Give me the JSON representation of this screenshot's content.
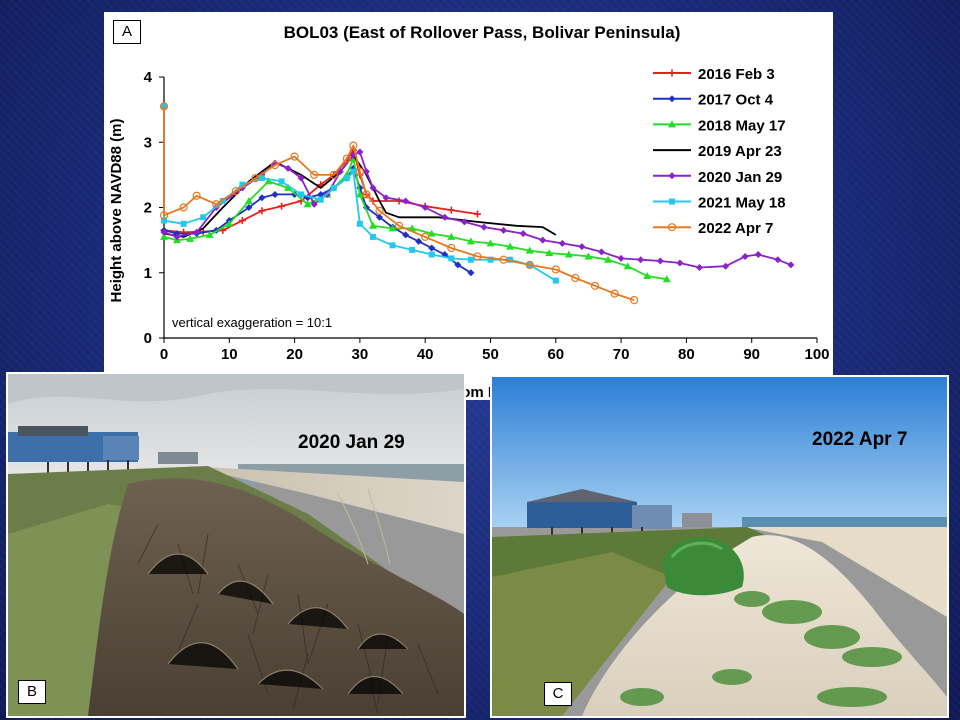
{
  "panel_labels": {
    "a": "A",
    "b": "B",
    "c": "C"
  },
  "photos": {
    "b": {
      "date": "2020 Jan 29"
    },
    "c": {
      "date": "2022 Apr 7"
    }
  },
  "chart_data": {
    "type": "line",
    "title": "BOL03 (East of Rollover Pass, Bolivar Peninsula)",
    "xlabel": "Distance from Monument (m)",
    "ylabel": "Height above NAVD88 (m)",
    "xlim": [
      0,
      100
    ],
    "ylim": [
      0,
      4
    ],
    "x_ticks": [
      "0",
      "10",
      "20",
      "30",
      "40",
      "50",
      "60",
      "70",
      "80",
      "90",
      "100"
    ],
    "y_ticks": [
      "0",
      "1",
      "2",
      "3",
      "4"
    ],
    "annotation": "vertical exaggeration = 10:1",
    "legend_position": "top-right",
    "grid": false,
    "series": [
      {
        "name": "2016 Feb 3",
        "color": "#e8201c",
        "marker": "plus",
        "points": [
          [
            0,
            1.65
          ],
          [
            3,
            1.62
          ],
          [
            6,
            1.63
          ],
          [
            9,
            1.65
          ],
          [
            12,
            1.8
          ],
          [
            15,
            1.95
          ],
          [
            18,
            2.02
          ],
          [
            21,
            2.1
          ],
          [
            24,
            2.35
          ],
          [
            26,
            2.5
          ],
          [
            28,
            2.72
          ],
          [
            29,
            2.88
          ],
          [
            30,
            2.5
          ],
          [
            31,
            2.2
          ],
          [
            32,
            2.1
          ],
          [
            36,
            2.1
          ],
          [
            40,
            2.02
          ],
          [
            44,
            1.96
          ],
          [
            48,
            1.9
          ]
        ]
      },
      {
        "name": "2017 Oct 4",
        "color": "#1f2fc8",
        "marker": "diamond",
        "points": [
          [
            0,
            1.65
          ],
          [
            2,
            1.6
          ],
          [
            5,
            1.6
          ],
          [
            8,
            1.65
          ],
          [
            10,
            1.8
          ],
          [
            13,
            2.0
          ],
          [
            15,
            2.15
          ],
          [
            17,
            2.2
          ],
          [
            20,
            2.2
          ],
          [
            22,
            2.15
          ],
          [
            24,
            2.2
          ],
          [
            26,
            2.3
          ],
          [
            28,
            2.45
          ],
          [
            29,
            2.6
          ],
          [
            30,
            2.3
          ],
          [
            31,
            2.0
          ],
          [
            33,
            1.85
          ],
          [
            35,
            1.7
          ],
          [
            37,
            1.58
          ],
          [
            39,
            1.48
          ],
          [
            41,
            1.38
          ],
          [
            43,
            1.28
          ],
          [
            45,
            1.12
          ],
          [
            47,
            1.0
          ]
        ]
      },
      {
        "name": "2018 May 17",
        "color": "#22dd22",
        "marker": "triangle",
        "points": [
          [
            0,
            1.55
          ],
          [
            2,
            1.5
          ],
          [
            4,
            1.52
          ],
          [
            7,
            1.58
          ],
          [
            10,
            1.75
          ],
          [
            13,
            2.1
          ],
          [
            16,
            2.4
          ],
          [
            19,
            2.3
          ],
          [
            22,
            2.05
          ],
          [
            25,
            2.2
          ],
          [
            28,
            2.5
          ],
          [
            29,
            2.75
          ],
          [
            30,
            2.2
          ],
          [
            32,
            1.72
          ],
          [
            35,
            1.68
          ],
          [
            38,
            1.68
          ],
          [
            41,
            1.6
          ],
          [
            44,
            1.55
          ],
          [
            47,
            1.48
          ],
          [
            50,
            1.45
          ],
          [
            53,
            1.4
          ],
          [
            56,
            1.34
          ],
          [
            59,
            1.3
          ],
          [
            62,
            1.28
          ],
          [
            65,
            1.25
          ],
          [
            68,
            1.2
          ],
          [
            71,
            1.1
          ],
          [
            74,
            0.95
          ],
          [
            77,
            0.9
          ]
        ]
      },
      {
        "name": "2019 Apr 23",
        "color": "#000000",
        "marker": "none",
        "points": [
          [
            0,
            1.6
          ],
          [
            3,
            1.55
          ],
          [
            6,
            1.68
          ],
          [
            9,
            2.0
          ],
          [
            13,
            2.4
          ],
          [
            17,
            2.7
          ],
          [
            21,
            2.5
          ],
          [
            24,
            2.3
          ],
          [
            27,
            2.55
          ],
          [
            29,
            2.8
          ],
          [
            31,
            2.5
          ],
          [
            33,
            2.1
          ],
          [
            34,
            1.92
          ],
          [
            36,
            1.85
          ],
          [
            42,
            1.85
          ],
          [
            48,
            1.78
          ],
          [
            54,
            1.72
          ],
          [
            58,
            1.7
          ],
          [
            60,
            1.58
          ]
        ]
      },
      {
        "name": "2020 Jan 29",
        "color": "#8b22c8",
        "marker": "diamond",
        "points": [
          [
            0,
            1.62
          ],
          [
            2,
            1.55
          ],
          [
            5,
            1.62
          ],
          [
            8,
            2.0
          ],
          [
            12,
            2.3
          ],
          [
            15,
            2.5
          ],
          [
            17,
            2.68
          ],
          [
            19,
            2.6
          ],
          [
            21,
            2.45
          ],
          [
            23,
            2.05
          ],
          [
            25,
            2.2
          ],
          [
            27,
            2.55
          ],
          [
            29,
            2.8
          ],
          [
            30,
            2.85
          ],
          [
            31,
            2.55
          ],
          [
            32,
            2.3
          ],
          [
            34,
            2.15
          ],
          [
            37,
            2.1
          ],
          [
            40,
            2.0
          ],
          [
            43,
            1.85
          ],
          [
            46,
            1.78
          ],
          [
            49,
            1.7
          ],
          [
            52,
            1.65
          ],
          [
            55,
            1.6
          ],
          [
            58,
            1.5
          ],
          [
            61,
            1.45
          ],
          [
            64,
            1.4
          ],
          [
            67,
            1.32
          ],
          [
            70,
            1.22
          ],
          [
            73,
            1.2
          ],
          [
            76,
            1.18
          ],
          [
            79,
            1.15
          ],
          [
            82,
            1.08
          ],
          [
            86,
            1.1
          ],
          [
            89,
            1.25
          ],
          [
            91,
            1.28
          ],
          [
            94,
            1.2
          ],
          [
            96,
            1.12
          ]
        ]
      },
      {
        "name": "2021 May 18",
        "color": "#22c8ee",
        "marker": "square",
        "points": [
          [
            0,
            3.55
          ],
          [
            0,
            1.8
          ],
          [
            3,
            1.75
          ],
          [
            6,
            1.85
          ],
          [
            9,
            2.1
          ],
          [
            12,
            2.35
          ],
          [
            15,
            2.45
          ],
          [
            18,
            2.4
          ],
          [
            21,
            2.2
          ],
          [
            24,
            2.12
          ],
          [
            26,
            2.3
          ],
          [
            28,
            2.45
          ],
          [
            29,
            2.55
          ],
          [
            30,
            1.75
          ],
          [
            32,
            1.55
          ],
          [
            35,
            1.42
          ],
          [
            38,
            1.35
          ],
          [
            41,
            1.28
          ],
          [
            44,
            1.22
          ],
          [
            47,
            1.2
          ],
          [
            50,
            1.2
          ],
          [
            53,
            1.2
          ],
          [
            56,
            1.12
          ],
          [
            60,
            0.88
          ]
        ]
      },
      {
        "name": "2022 Apr 7",
        "color": "#e87820",
        "marker": "circle",
        "points": [
          [
            0,
            3.55
          ],
          [
            0,
            1.88
          ],
          [
            3,
            2.0
          ],
          [
            5,
            2.18
          ],
          [
            8,
            2.05
          ],
          [
            11,
            2.25
          ],
          [
            14,
            2.45
          ],
          [
            17,
            2.65
          ],
          [
            20,
            2.78
          ],
          [
            23,
            2.5
          ],
          [
            26,
            2.5
          ],
          [
            28,
            2.75
          ],
          [
            29,
            2.95
          ],
          [
            30,
            2.55
          ],
          [
            31,
            2.2
          ],
          [
            33,
            1.95
          ],
          [
            36,
            1.72
          ],
          [
            40,
            1.55
          ],
          [
            44,
            1.38
          ],
          [
            48,
            1.25
          ],
          [
            52,
            1.2
          ],
          [
            56,
            1.12
          ],
          [
            60,
            1.05
          ],
          [
            63,
            0.92
          ],
          [
            66,
            0.8
          ],
          [
            69,
            0.68
          ],
          [
            72,
            0.58
          ]
        ]
      }
    ]
  }
}
